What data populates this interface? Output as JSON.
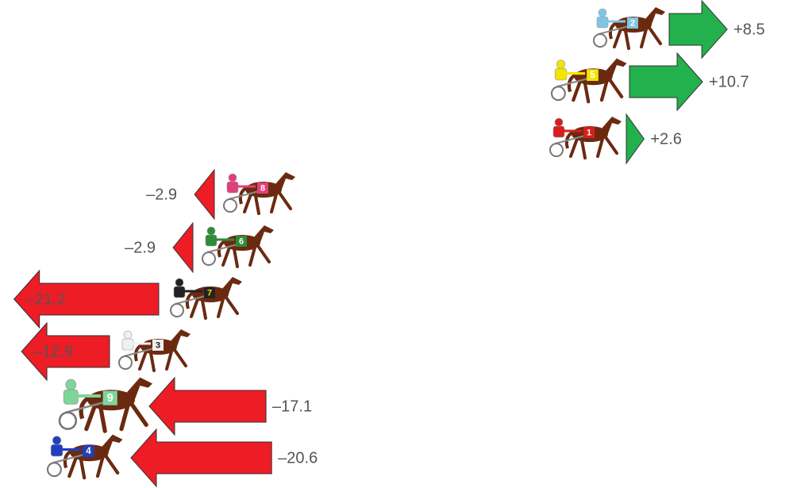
{
  "chart_data": {
    "type": "arrow",
    "categories": [
      "2",
      "5",
      "1",
      "8",
      "6",
      "7",
      "3",
      "9",
      "4"
    ],
    "values": [
      8.5,
      10.7,
      2.6,
      -2.9,
      -2.9,
      -21.2,
      -12.9,
      -17.1,
      -20.6
    ],
    "value_labels": [
      "+8.5",
      "+10.7",
      "+2.6",
      "–2.9",
      "–2.9",
      "–21.2",
      "–12.9",
      "–17.1",
      "–20.6"
    ],
    "jockey_colors": [
      "#7fc6e6",
      "#f2e600",
      "#d81e1e",
      "#e0407a",
      "#2e8b3a",
      "#222222",
      "#f0f0f0",
      "#7ed59a",
      "#1f3fbf"
    ],
    "up_color": "#22b14c",
    "down_color": "#ee1c25"
  }
}
